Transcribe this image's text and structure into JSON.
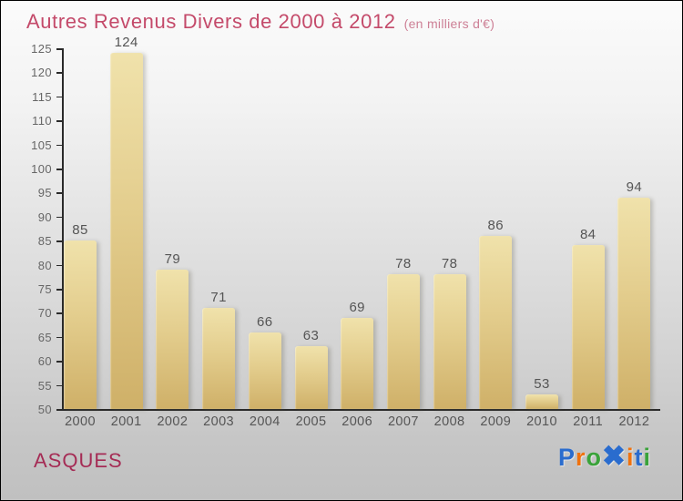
{
  "header": {
    "title": "Autres Revenus Divers de 2000 à 2012",
    "subtitle": "(en milliers d'€)"
  },
  "chart_data": {
    "type": "bar",
    "title": "Autres Revenus Divers de 2000 à 2012",
    "subtitle": "(en milliers d'€)",
    "categories": [
      "2000",
      "2001",
      "2002",
      "2003",
      "2004",
      "2005",
      "2006",
      "2007",
      "2008",
      "2009",
      "2010",
      "2011",
      "2012"
    ],
    "values": [
      85,
      124,
      79,
      71,
      66,
      63,
      69,
      78,
      78,
      86,
      53,
      84,
      94
    ],
    "xlabel": "",
    "ylabel": "",
    "ylim": [
      50,
      125
    ],
    "ytick_step": 5,
    "grid": false,
    "legend": false,
    "value_labels": true
  },
  "footer": {
    "location": "ASQUES",
    "brand": {
      "name": "Proxiti",
      "letters": [
        {
          "ch": "P",
          "color": "#2a6cce"
        },
        {
          "ch": "r",
          "color": "#f0720e"
        },
        {
          "ch": "o",
          "color": "#3aa33a"
        },
        {
          "ch": "✖",
          "color": "#2a6cce",
          "big": true
        },
        {
          "ch": "i",
          "color": "#f0720e"
        },
        {
          "ch": "t",
          "color": "#2a6cce"
        },
        {
          "ch": "i",
          "color": "#3aa33a"
        }
      ]
    }
  },
  "colors": {
    "title_pink": "#c44a6a",
    "subtitle_pink": "#cd7f95",
    "location_pink": "#a52c55",
    "axis": "#2a2a2a",
    "tick_label": "#666666",
    "value_label": "#555555",
    "bar_top": "#f0e2ab",
    "bar_bottom": "#cfb068"
  }
}
